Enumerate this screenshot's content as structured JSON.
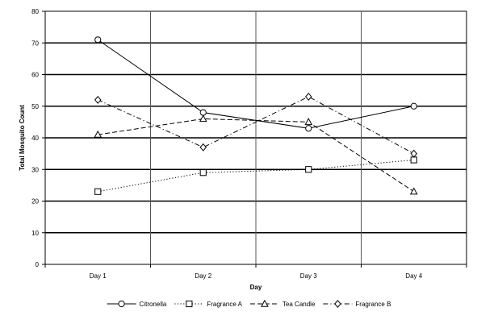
{
  "chart_data": {
    "type": "line",
    "title": "",
    "xlabel": "Day",
    "ylabel": "Total Mosquito Count",
    "categories": [
      "Day 1",
      "Day 2",
      "Day 3",
      "Day 4"
    ],
    "ylim": [
      0,
      80
    ],
    "yticks": [
      0,
      10,
      20,
      30,
      40,
      50,
      60,
      70,
      80
    ],
    "grid": true,
    "legend_position": "bottom",
    "series": [
      {
        "name": "Citronella",
        "values": [
          71,
          48,
          43,
          50
        ],
        "marker": "circle",
        "dash": "solid",
        "color": "#000000"
      },
      {
        "name": "Fragrance A",
        "values": [
          23,
          29,
          30,
          33
        ],
        "marker": "square",
        "dash": "dotted",
        "color": "#000000"
      },
      {
        "name": "Tea Candle",
        "values": [
          41,
          46,
          45,
          23
        ],
        "marker": "triangle",
        "dash": "dashed",
        "color": "#000000"
      },
      {
        "name": "Fragrance B",
        "values": [
          52,
          37,
          53,
          35
        ],
        "marker": "diamond",
        "dash": "dashdot",
        "color": "#000000"
      }
    ]
  }
}
